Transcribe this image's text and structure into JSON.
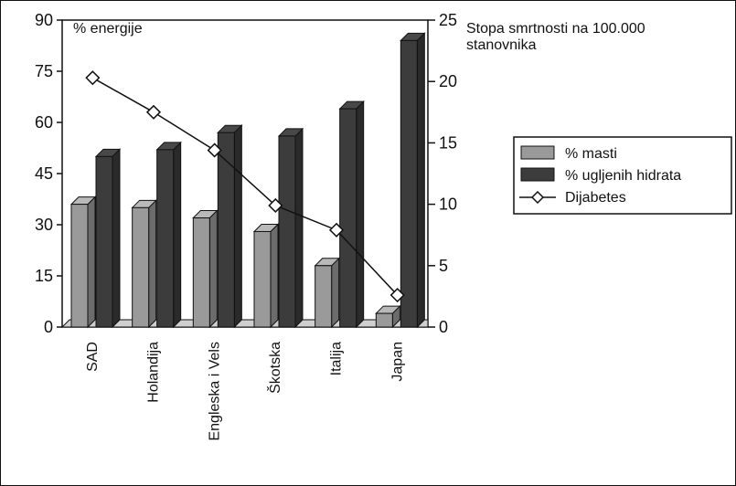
{
  "chart_data": {
    "type": "bar",
    "title": "",
    "categories": [
      "SAD",
      "Holandija",
      "Engleska i Vels",
      "Škotska",
      "Italija",
      "Japan"
    ],
    "series": [
      {
        "name": "% masti",
        "axis": "left",
        "kind": "bar",
        "color": "#9a9a9a",
        "values": [
          36,
          35,
          32,
          28,
          18,
          4
        ]
      },
      {
        "name": "% ugljenih hidrata",
        "axis": "left",
        "kind": "bar",
        "color": "#3c3c3c",
        "values": [
          50,
          52,
          57,
          56,
          64,
          84
        ]
      },
      {
        "name": "Dijabetes",
        "axis": "right",
        "kind": "line",
        "marker": "diamond",
        "color": "#111111",
        "values": [
          20.3,
          17.5,
          14.4,
          9.9,
          7.9,
          2.6
        ]
      }
    ],
    "y_left": {
      "label": "% energije",
      "ticks": [
        0,
        15,
        30,
        45,
        60,
        75,
        90
      ],
      "ylim": [
        0,
        90
      ]
    },
    "y_right": {
      "label": "Stopa smrtnosti na 100.000 stanovnika",
      "ticks": [
        0,
        5,
        10,
        15,
        20,
        25
      ],
      "ylim": [
        0,
        25
      ]
    },
    "legend": {
      "position": "right",
      "items": [
        "% masti",
        "% ugljenih hidrata",
        "Dijabetes"
      ]
    },
    "grid": false
  }
}
